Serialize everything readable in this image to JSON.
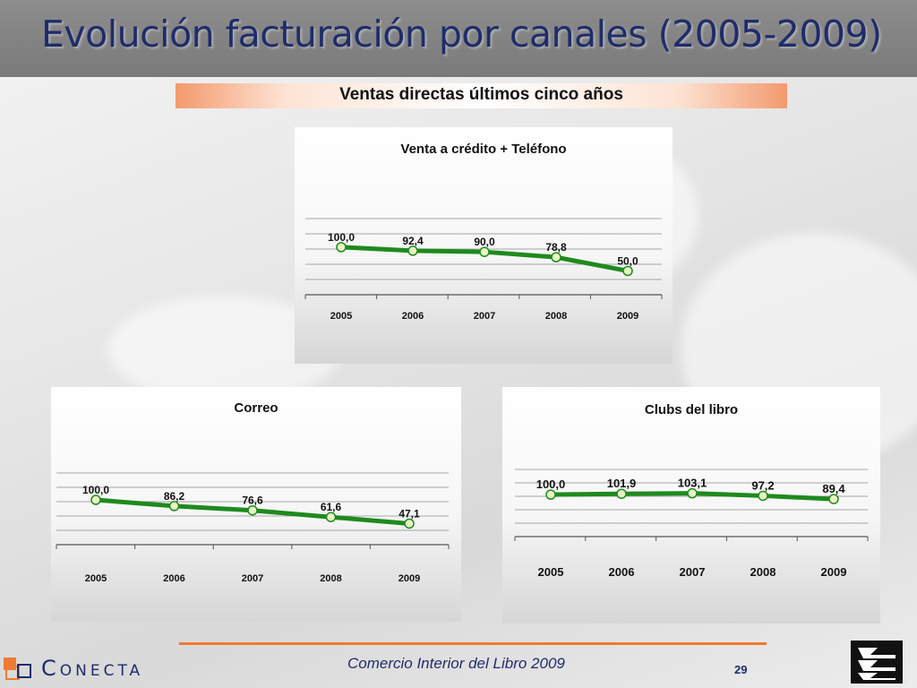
{
  "title": "Evolución facturación por canales (2005-2009)",
  "subtitle": "Ventas directas últimos cinco años",
  "colors": {
    "line": "#1e8a1e",
    "marker_fill": "#e9f5c4",
    "title": "#1f2c6b",
    "accent": "#ef7a32"
  },
  "chart_data": [
    {
      "type": "line",
      "title": "Venta a crédito + Teléfono",
      "categories": [
        "2005",
        "2006",
        "2007",
        "2008",
        "2009"
      ],
      "values": [
        100.0,
        92.4,
        90.0,
        78.8,
        50.0
      ],
      "value_labels": [
        "100,0",
        "92,4",
        "90,0",
        "78,8",
        "50,0"
      ],
      "grid": true
    },
    {
      "type": "line",
      "title": "Correo",
      "categories": [
        "2005",
        "2006",
        "2007",
        "2008",
        "2009"
      ],
      "values": [
        100.0,
        86.2,
        76.6,
        61.6,
        47.1
      ],
      "value_labels": [
        "100,0",
        "86,2",
        "76,6",
        "61,6",
        "47,1"
      ],
      "grid": true
    },
    {
      "type": "line",
      "title": "Clubs del libro",
      "categories": [
        "2005",
        "2006",
        "2007",
        "2008",
        "2009"
      ],
      "values": [
        100.0,
        101.9,
        103.1,
        97.2,
        89.4
      ],
      "value_labels": [
        "100,0",
        "101,9",
        "103,1",
        "97,2",
        "89,4"
      ],
      "grid": true
    }
  ],
  "footer": {
    "text": "Comercio Interior del Libro 2009",
    "page_number": "29",
    "logo_text": "Conecta"
  }
}
